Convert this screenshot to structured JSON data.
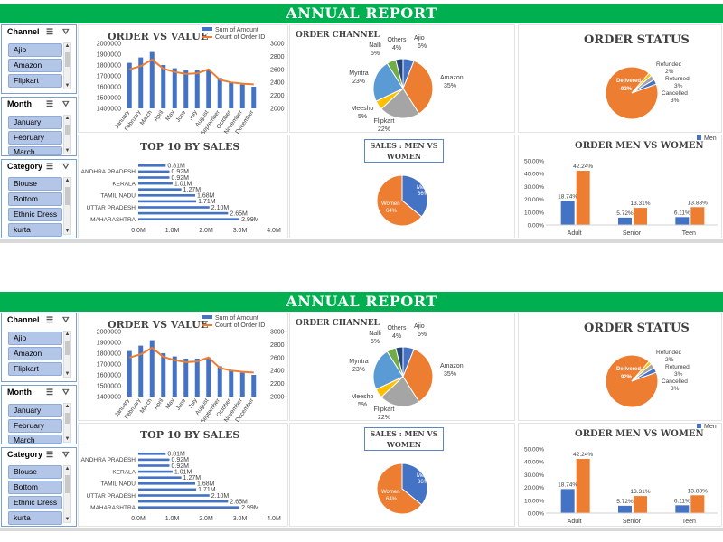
{
  "banner": "ANNUAL REPORT",
  "slicers": {
    "channel": {
      "title": "Channel",
      "items": [
        "Ajio",
        "Amazon",
        "Flipkart"
      ]
    },
    "month": {
      "title": "Month",
      "items": [
        "January",
        "February",
        "March"
      ]
    },
    "category": {
      "title": "Category",
      "items": [
        "Blouse",
        "Bottom",
        "Ethnic Dress",
        "kurta"
      ]
    }
  },
  "icons": {
    "multiselect": "multi-select-icon",
    "filter": "clear-filter-icon"
  },
  "colors": {
    "blue": "#4472c4",
    "orange": "#ed7d31",
    "gray": "#a5a5a5",
    "yellow": "#ffc000",
    "lightblue": "#5b9bd5",
    "green": "#70ad47",
    "banner": "#00b050"
  },
  "chart_data": [
    {
      "id": "order_vs_value",
      "type": "bar",
      "title": "ORDER VS VALUE",
      "categories": [
        "January",
        "February",
        "March",
        "April",
        "May",
        "June",
        "July",
        "August",
        "September",
        "October",
        "November",
        "December"
      ],
      "series": [
        {
          "name": "Sum of Amount",
          "type": "bar",
          "axis": "left",
          "values": [
            1820000,
            1870000,
            1920000,
            1800000,
            1770000,
            1750000,
            1750000,
            1760000,
            1680000,
            1640000,
            1620000,
            1600000
          ]
        },
        {
          "name": "Count of Order ID",
          "type": "line",
          "axis": "right",
          "values": [
            2600,
            2650,
            2750,
            2610,
            2560,
            2530,
            2540,
            2600,
            2440,
            2400,
            2380,
            2370
          ]
        }
      ],
      "y_left_ticks": [
        "2000000",
        "1900000",
        "1800000",
        "1700000",
        "1600000",
        "1500000",
        "1400000"
      ],
      "y_right_ticks": [
        "3000",
        "2800",
        "2600",
        "2400",
        "2200",
        "2000"
      ],
      "ylim_left": [
        1400000,
        2000000
      ],
      "ylim_right": [
        2000,
        3000
      ],
      "legend": "top"
    },
    {
      "id": "order_channel",
      "type": "pie",
      "title": "ORDER CHANNEL",
      "slices": [
        {
          "name": "Ajio",
          "value": 6,
          "label": "6%"
        },
        {
          "name": "Amazon",
          "value": 35,
          "label": "35%"
        },
        {
          "name": "Flipkart",
          "value": 22,
          "label": "22%"
        },
        {
          "name": "Meesho",
          "value": 5,
          "label": "5%"
        },
        {
          "name": "Myntra",
          "value": 23,
          "label": "23%"
        },
        {
          "name": "Nalli",
          "value": 5,
          "label": "5%"
        },
        {
          "name": "Others",
          "value": 4,
          "label": "4%"
        }
      ]
    },
    {
      "id": "order_status",
      "type": "pie",
      "title": "ORDER STATUS",
      "slices": [
        {
          "name": "Delivered",
          "value": 92,
          "label": "92%"
        },
        {
          "name": "Refunded",
          "value": 2,
          "label": "2%"
        },
        {
          "name": "Returned",
          "value": 3,
          "label": "3%"
        },
        {
          "name": "Cancelled",
          "value": 3,
          "label": "3%"
        }
      ]
    },
    {
      "id": "top10_sales",
      "type": "bar",
      "orientation": "horizontal",
      "title": "TOP 10 BY SALES",
      "categories": [
        "MAHARASHTRA",
        "",
        "UTTAR PRADESH",
        "",
        "TAMIL NADU",
        "",
        "KERALA",
        "",
        "ANDHRA PRADESH",
        ""
      ],
      "values": [
        2.99,
        2.65,
        2.1,
        1.71,
        1.68,
        1.27,
        1.01,
        0.92,
        0.92,
        0.81
      ],
      "labels": [
        "2.99M",
        "2.65M",
        "2.10M",
        "1.71M",
        "1.68M",
        "1.27M",
        "1.01M",
        "0.92M",
        "0.92M",
        "0.81M"
      ],
      "x_ticks": [
        "0.0M",
        "1.0M",
        "2.0M",
        "3.0M",
        "4.0M"
      ],
      "xlim": [
        0,
        4
      ]
    },
    {
      "id": "sales_men_women",
      "type": "pie",
      "title": "SALES : MEN VS WOMEN",
      "slices": [
        {
          "name": "Men",
          "value": 36,
          "label": "36%"
        },
        {
          "name": "Women",
          "value": 64,
          "label": "64%"
        }
      ]
    },
    {
      "id": "order_men_women",
      "type": "bar",
      "title": "ORDER MEN VS WOMEN",
      "categories": [
        "Adult",
        "Senior",
        "Teen"
      ],
      "series": [
        {
          "name": "Men",
          "values": [
            18.74,
            5.72,
            6.11
          ],
          "labels": [
            "18.74%",
            "5.72%",
            "6.11%"
          ]
        },
        {
          "name": "",
          "values": [
            42.24,
            13.31,
            13.88
          ],
          "labels": [
            "42.24%",
            "13.31%",
            "13.88%"
          ]
        }
      ],
      "y_ticks": [
        "50.00%",
        "40.00%",
        "30.00%",
        "20.00%",
        "10.00%",
        "0.00%"
      ],
      "ylim": [
        0,
        50
      ],
      "legend": "top-right"
    }
  ]
}
